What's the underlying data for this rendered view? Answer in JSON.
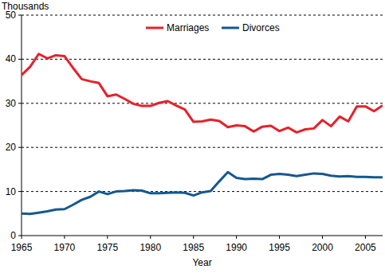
{
  "chart_data": {
    "type": "line",
    "y_label": "Thousands",
    "x_label": "Year",
    "x": [
      1965,
      1966,
      1967,
      1968,
      1969,
      1970,
      1971,
      1972,
      1973,
      1974,
      1975,
      1976,
      1977,
      1978,
      1979,
      1980,
      1981,
      1982,
      1983,
      1984,
      1985,
      1986,
      1987,
      1988,
      1989,
      1990,
      1991,
      1992,
      1993,
      1994,
      1995,
      1996,
      1997,
      1998,
      1999,
      2000,
      2001,
      2002,
      2003,
      2004,
      2005,
      2006,
      2007
    ],
    "series": [
      {
        "name": "Marriages",
        "color": "#e8202a",
        "values": [
          36.4,
          38.3,
          41.2,
          40.2,
          40.9,
          40.7,
          38.0,
          35.5,
          35.0,
          34.6,
          31.6,
          32.0,
          31.0,
          29.9,
          29.4,
          29.4,
          30.1,
          30.5,
          29.5,
          28.6,
          25.8,
          25.9,
          26.3,
          26.0,
          24.6,
          25.0,
          24.8,
          23.6,
          24.7,
          24.9,
          23.7,
          24.5,
          23.4,
          24.1,
          24.3,
          26.2,
          24.8,
          27.0,
          25.9,
          29.3,
          29.3,
          28.2,
          29.5
        ]
      },
      {
        "name": "Divorces",
        "color": "#15588f",
        "values": [
          5.0,
          4.9,
          5.2,
          5.5,
          5.9,
          6.0,
          7.0,
          8.1,
          8.8,
          10.0,
          9.4,
          10.0,
          10.1,
          10.3,
          10.2,
          9.6,
          9.6,
          9.7,
          9.8,
          9.7,
          9.1,
          9.8,
          10.1,
          12.3,
          14.4,
          13.1,
          12.8,
          12.9,
          12.8,
          13.8,
          14.0,
          13.8,
          13.5,
          13.8,
          14.1,
          14.0,
          13.6,
          13.4,
          13.5,
          13.3,
          13.3,
          13.2,
          13.2
        ]
      }
    ],
    "xlim": [
      1965,
      2007
    ],
    "xticks": [
      1965,
      1970,
      1975,
      1980,
      1985,
      1990,
      1995,
      2000,
      2005
    ],
    "ylim": [
      0,
      50
    ],
    "yticks": [
      0,
      10,
      20,
      30,
      40,
      50
    ],
    "grid": true,
    "legend": "top"
  }
}
